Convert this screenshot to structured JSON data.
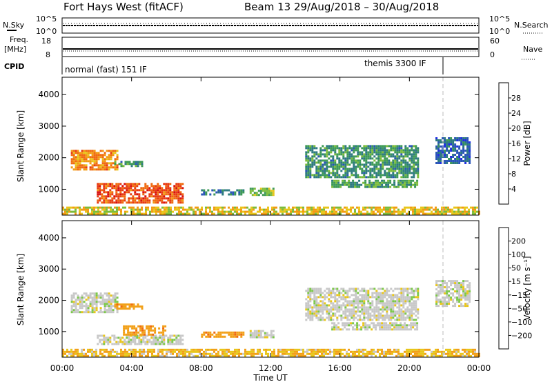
{
  "header": {
    "title": "Fort Hays West (fitACF)",
    "subtitle": "Beam 13 29/Aug/2018 – 30/Aug/2018"
  },
  "strips": {
    "nsky_label": "N.Sky",
    "nsky_tick_top": "10^5",
    "nsky_tick_bottom": "10^0",
    "nsearch_label": "N.Search",
    "nsearch_tick_top": "10^5",
    "nsearch_tick_bottom": "10^0",
    "freq_label_1": "Freq.",
    "freq_label_2": "[MHz]",
    "freq_tick_top": "18",
    "freq_tick_bottom": "8",
    "nave_label": "Nave",
    "nave_tick_top": "60",
    "nave_tick_bottom": "0",
    "cpid_label": "CPID",
    "cpid_mode_1": "normal (fast) 151 IF",
    "cpid_mode_2": "themis 3300 IF"
  },
  "colors": {
    "power_scale": [
      "#1f2ee0",
      "#2a55b8",
      "#2d7a80",
      "#3e9a56",
      "#7cbc3a",
      "#e8c61a",
      "#f29a12",
      "#f06a10",
      "#e83a12",
      "#d81010"
    ],
    "velocity_scale": [
      "#d81010",
      "#f06a10",
      "#f2a018",
      "#e8c61a",
      "#c8c8c8",
      "#7cc84a",
      "#2d7a80",
      "#2a55b8",
      "#1f2ee0"
    ],
    "ground_scatter": "#aaaaaa"
  },
  "chart_data": [
    {
      "type": "heatmap",
      "panel": "power",
      "ylabel": "Slant Range [km]",
      "ylim": [
        180,
        4550
      ],
      "yticks": [
        "1000",
        "2000",
        "3000",
        "4000"
      ],
      "xlim_hours": [
        0,
        24
      ],
      "xticks": [
        "00:00",
        "04:00",
        "08:00",
        "12:00",
        "16:00",
        "20:00",
        "00:00"
      ],
      "colorbar": {
        "label": "Power [dB]",
        "range": [
          0,
          32
        ],
        "ticks": [
          "4",
          "8",
          "12",
          "16",
          "20",
          "24",
          "28"
        ]
      },
      "regions": [
        {
          "t0": 0.5,
          "t1": 3.2,
          "r0": 1650,
          "r1": 2250,
          "value": 22
        },
        {
          "t0": 2.0,
          "t1": 7.0,
          "r0": 600,
          "r1": 1200,
          "value": 26
        },
        {
          "t0": 3.0,
          "t1": 4.6,
          "r0": 1750,
          "r1": 1900,
          "value": 10
        },
        {
          "t0": 8.0,
          "t1": 10.5,
          "r0": 850,
          "r1": 1000,
          "value": 8
        },
        {
          "t0": 10.8,
          "t1": 12.2,
          "r0": 800,
          "r1": 1050,
          "value": 14
        },
        {
          "t0": 14.0,
          "t1": 20.5,
          "r0": 1400,
          "r1": 2400,
          "value": 10
        },
        {
          "t0": 15.5,
          "t1": 20.5,
          "r0": 1100,
          "r1": 1300,
          "value": 12
        },
        {
          "t0": 21.5,
          "t1": 23.5,
          "r0": 1850,
          "r1": 2650,
          "value": 6
        },
        {
          "t0": 0.0,
          "t1": 24.0,
          "r0": 200,
          "r1": 450,
          "value": 18
        }
      ]
    },
    {
      "type": "heatmap",
      "panel": "velocity",
      "ylabel": "Slant Range [km]",
      "ylim": [
        180,
        4550
      ],
      "yticks": [
        "1000",
        "2000",
        "3000",
        "4000"
      ],
      "xlim_hours": [
        0,
        24
      ],
      "xticks": [
        "00:00",
        "04:00",
        "08:00",
        "12:00",
        "16:00",
        "20:00",
        "00:00"
      ],
      "xlabel": "Time UT",
      "colorbar": {
        "label": "Velocity [m s⁻¹]",
        "ticks": [
          "200",
          "100",
          "50",
          "15",
          "−15",
          "−50",
          "−100",
          "−200"
        ]
      },
      "regions": [
        {
          "t0": 0.5,
          "t1": 3.2,
          "r0": 1650,
          "r1": 2250,
          "value": 0
        },
        {
          "t0": 2.0,
          "t1": 7.0,
          "r0": 600,
          "r1": 900,
          "value": 0
        },
        {
          "t0": 3.5,
          "t1": 6.0,
          "r0": 900,
          "r1": 1200,
          "value": -60
        },
        {
          "t0": 3.0,
          "t1": 4.6,
          "r0": 1750,
          "r1": 1900,
          "value": -60
        },
        {
          "t0": 8.0,
          "t1": 10.5,
          "r0": 850,
          "r1": 1000,
          "value": -60
        },
        {
          "t0": 10.8,
          "t1": 12.2,
          "r0": 800,
          "r1": 1050,
          "value": 0
        },
        {
          "t0": 14.0,
          "t1": 20.5,
          "r0": 1400,
          "r1": 2400,
          "value": 0
        },
        {
          "t0": 15.5,
          "t1": 20.5,
          "r0": 1100,
          "r1": 1300,
          "value": 0
        },
        {
          "t0": 21.5,
          "t1": 23.5,
          "r0": 1850,
          "r1": 2650,
          "value": 0
        },
        {
          "t0": 0.0,
          "t1": 24.0,
          "r0": 200,
          "r1": 450,
          "value": -30
        }
      ]
    }
  ]
}
